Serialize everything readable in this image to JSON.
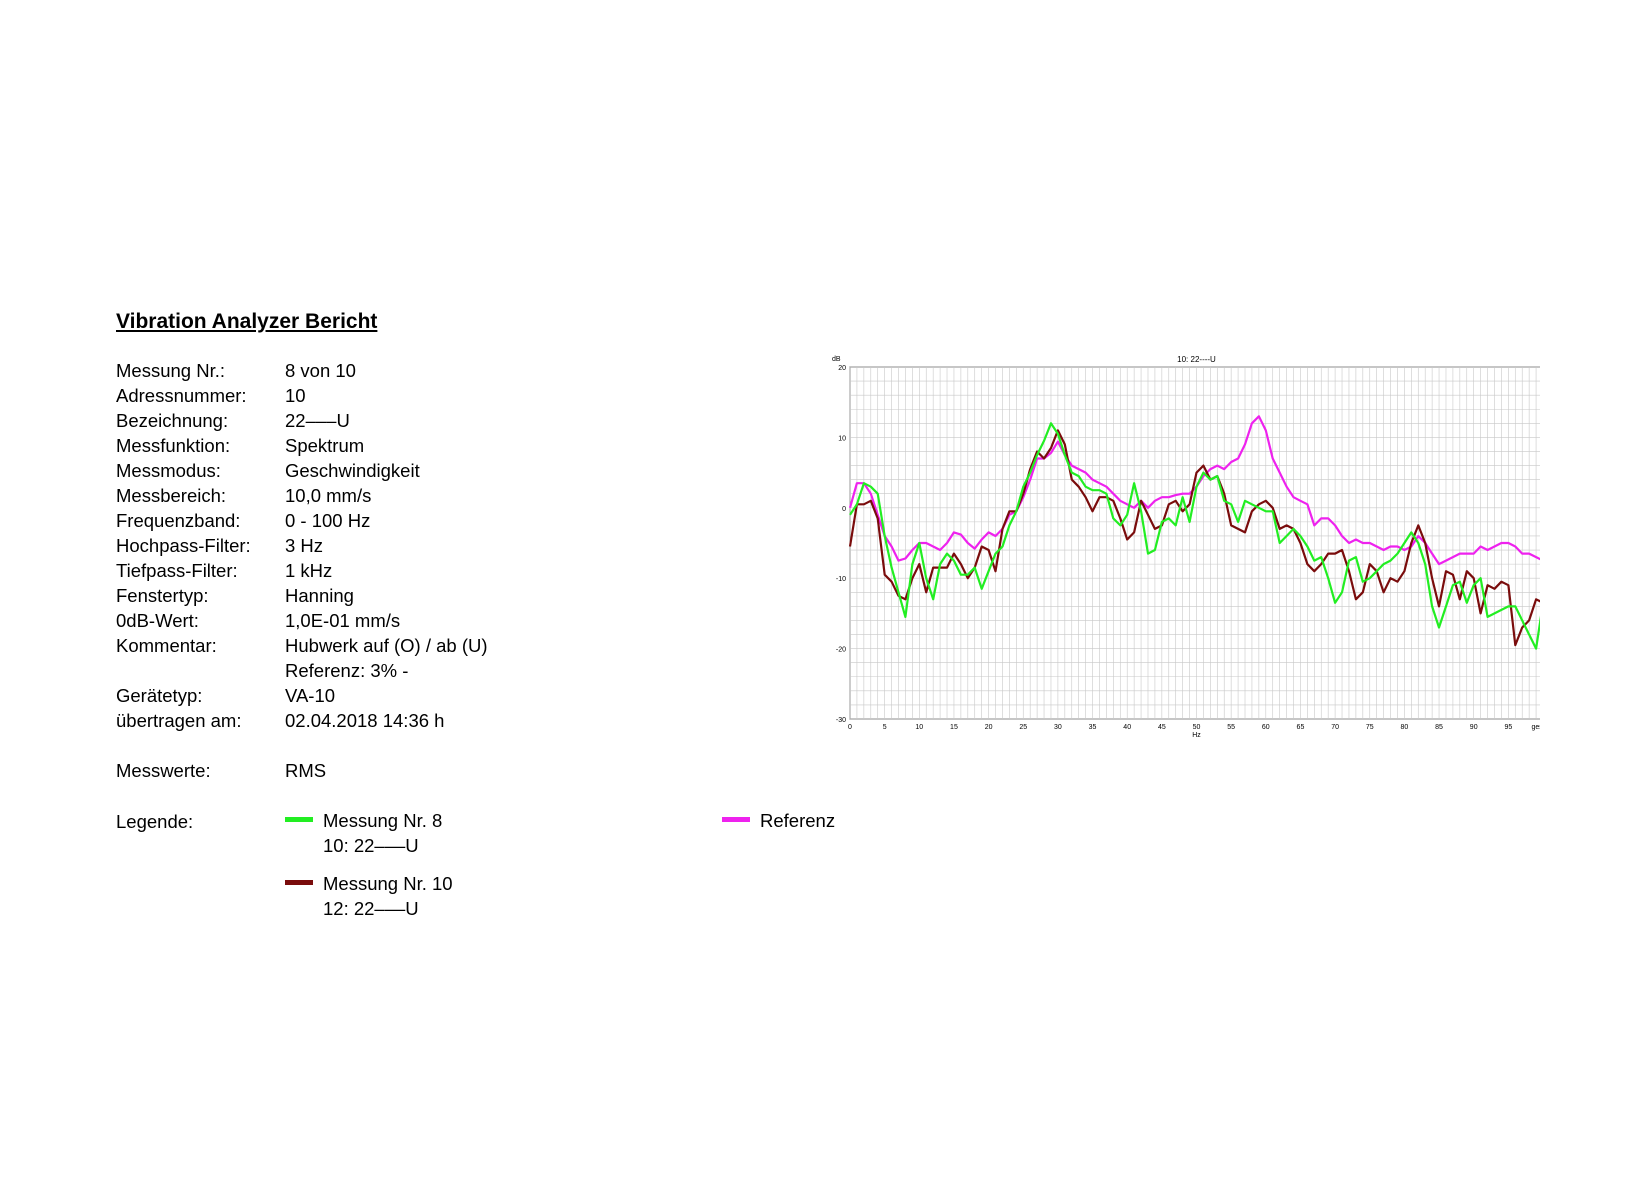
{
  "report": {
    "title": "Vibration Analyzer Bericht",
    "fields": [
      {
        "label": "Messung Nr.:",
        "value": "8 von 10"
      },
      {
        "label": "Adressnummer:",
        "value": "10"
      },
      {
        "label": "Bezeichnung:",
        "value": "22–––U"
      },
      {
        "label": "Messfunktion:",
        "value": "Spektrum"
      },
      {
        "label": "Messmodus:",
        "value": "Geschwindigkeit"
      },
      {
        "label": "Messbereich:",
        "value": "10,0 mm/s"
      },
      {
        "label": "Frequenzband:",
        "value": "0 - 100 Hz"
      },
      {
        "label": "Hochpass-Filter:",
        "value": "3 Hz"
      },
      {
        "label": "Tiefpass-Filter:",
        "value": "1 kHz"
      },
      {
        "label": "Fenstertyp:",
        "value": "Hanning"
      },
      {
        "label": "0dB-Wert:",
        "value": "1,0E-01 mm/s"
      },
      {
        "label": "Kommentar:",
        "value": "Hubwerk auf (O) / ab (U)"
      },
      {
        "label": "",
        "value": "Referenz: 3% -"
      },
      {
        "label": "Gerätetyp:",
        "value": "VA-10"
      },
      {
        "label": "übertragen am:",
        "value": "02.04.2018  14:36 h"
      }
    ],
    "messwerte_label": "Messwerte:",
    "messwerte_value": "RMS",
    "legende_label": "Legende:",
    "legend": [
      {
        "line1": "Messung Nr. 8",
        "line2": "10: 22–––U",
        "color": "#22ee22"
      },
      {
        "line1": "Messung Nr. 10",
        "line2": "12: 22–––U",
        "color": "#7a0c0c"
      },
      {
        "line1": "Referenz",
        "line2": "",
        "color": "#ee22ee"
      }
    ]
  },
  "chart_data": {
    "type": "line",
    "title": "10: 22----U",
    "ylabel": "dB",
    "xlabel": "Hz",
    "ylim": [
      -30,
      20
    ],
    "xlim": [
      0,
      100
    ],
    "yticks": [
      20,
      10,
      0,
      -10,
      -20,
      -30
    ],
    "xticks": [
      0,
      5,
      10,
      15,
      20,
      25,
      30,
      35,
      40,
      45,
      50,
      55,
      60,
      65,
      70,
      75,
      80,
      85,
      90,
      95
    ],
    "x_end_label": "gesamt",
    "grid": true,
    "series": [
      {
        "color": "#ee22ee",
        "x": [
          0,
          1,
          2,
          3,
          4,
          5,
          6,
          7,
          8,
          9,
          10,
          11,
          12,
          13,
          14,
          15,
          16,
          17,
          18,
          19,
          20,
          21,
          22,
          23,
          24,
          25,
          26,
          27,
          28,
          29,
          30,
          31,
          32,
          33,
          34,
          35,
          36,
          37,
          38,
          39,
          40,
          41,
          42,
          43,
          44,
          45,
          46,
          47,
          48,
          49,
          50,
          51,
          52,
          53,
          54,
          55,
          56,
          57,
          58,
          59,
          60,
          61,
          62,
          63,
          64,
          65,
          66,
          67,
          68,
          69,
          70,
          71,
          72,
          73,
          74,
          75,
          76,
          77,
          78,
          79,
          80,
          81,
          82,
          83,
          84,
          85,
          86,
          87,
          88,
          89,
          90,
          91,
          92,
          93,
          94,
          95,
          96,
          97,
          98,
          99,
          100
        ],
        "y": [
          0,
          3.5,
          3.5,
          2,
          -1,
          -4,
          -5.5,
          -7.5,
          -7.2,
          -6,
          -5,
          -5,
          -5.5,
          -6,
          -5,
          -3.5,
          -3.8,
          -5,
          -5.8,
          -4.5,
          -3.5,
          -4,
          -3,
          -1,
          -0.5,
          1.5,
          4,
          7,
          7,
          7.8,
          9.4,
          7.5,
          6,
          5.5,
          5,
          4,
          3.5,
          3,
          2,
          1,
          0.5,
          0,
          1,
          0,
          1,
          1.5,
          1.5,
          1.8,
          2,
          2,
          3,
          4.5,
          5.5,
          6,
          5.5,
          6.5,
          7,
          9,
          12,
          13,
          11,
          7,
          5,
          3,
          1.5,
          1,
          0.5,
          -2.5,
          -1.5,
          -1.5,
          -2.5,
          -4,
          -5,
          -4.5,
          -5,
          -5,
          -5.5,
          -6,
          -5.5,
          -5.5,
          -6,
          -5.5,
          -4,
          -5,
          -6.5,
          -8,
          -7.5,
          -7,
          -6.5,
          -6.5,
          -6.5,
          -5.5,
          -6,
          -5.5,
          -5,
          -5,
          -5.5,
          -6.5,
          -6.5,
          -7,
          -7.5
        ]
      },
      {
        "color": "#7a0c0c",
        "x": [
          0,
          1,
          2,
          3,
          4,
          5,
          6,
          7,
          8,
          9,
          10,
          11,
          12,
          13,
          14,
          15,
          16,
          17,
          18,
          19,
          20,
          21,
          22,
          23,
          24,
          25,
          26,
          27,
          28,
          29,
          30,
          31,
          32,
          33,
          34,
          35,
          36,
          37,
          38,
          39,
          40,
          41,
          42,
          43,
          44,
          45,
          46,
          47,
          48,
          49,
          50,
          51,
          52,
          53,
          54,
          55,
          56,
          57,
          58,
          59,
          60,
          61,
          62,
          63,
          64,
          65,
          66,
          67,
          68,
          69,
          70,
          71,
          72,
          73,
          74,
          75,
          76,
          77,
          78,
          79,
          80,
          81,
          82,
          83,
          84,
          85,
          86,
          87,
          88,
          89,
          90,
          91,
          92,
          93,
          94,
          95,
          96,
          97,
          98,
          99,
          100
        ],
        "y": [
          -5.5,
          0.5,
          0.5,
          1,
          -1.5,
          -9.5,
          -10.5,
          -12.5,
          -13,
          -10,
          -8,
          -12,
          -8.5,
          -8.5,
          -8.5,
          -6.5,
          -8,
          -10,
          -8.5,
          -5.5,
          -6,
          -9,
          -3,
          -0.5,
          -0.5,
          2,
          5.5,
          8,
          7,
          8.5,
          11,
          9,
          4,
          3,
          1.5,
          -0.5,
          1.5,
          1.5,
          1,
          -1.5,
          -4.5,
          -3.5,
          1,
          -1,
          -3,
          -2.5,
          0.5,
          1,
          -0.5,
          0.5,
          5,
          6,
          4,
          4.5,
          2,
          -2.5,
          -3,
          -3.5,
          -0.5,
          0.5,
          1,
          0,
          -3,
          -2.5,
          -3,
          -5,
          -8,
          -9,
          -8,
          -6.5,
          -6.5,
          -6,
          -9,
          -13,
          -12,
          -8,
          -9,
          -12,
          -10,
          -10.5,
          -9,
          -5,
          -2.5,
          -5,
          -10,
          -14,
          -9,
          -9.5,
          -13,
          -9,
          -10,
          -15,
          -11,
          -11.5,
          -10.5,
          -11,
          -19.5,
          -17,
          -16,
          -13,
          -13.5
        ]
      },
      {
        "color": "#22ee22",
        "x": [
          0,
          1,
          2,
          3,
          4,
          5,
          6,
          7,
          8,
          9,
          10,
          11,
          12,
          13,
          14,
          15,
          16,
          17,
          18,
          19,
          20,
          21,
          22,
          23,
          24,
          25,
          26,
          27,
          28,
          29,
          30,
          31,
          32,
          33,
          34,
          35,
          36,
          37,
          38,
          39,
          40,
          41,
          42,
          43,
          44,
          45,
          46,
          47,
          48,
          49,
          50,
          51,
          52,
          53,
          54,
          55,
          56,
          57,
          58,
          59,
          60,
          61,
          62,
          63,
          64,
          65,
          66,
          67,
          68,
          69,
          70,
          71,
          72,
          73,
          74,
          75,
          76,
          77,
          78,
          79,
          80,
          81,
          82,
          83,
          84,
          85,
          86,
          87,
          88,
          89,
          90,
          91,
          92,
          93,
          94,
          95,
          96,
          97,
          98,
          99,
          100
        ],
        "y": [
          -1,
          0.5,
          3.5,
          3,
          2,
          -4,
          -8.5,
          -12,
          -15.5,
          -8,
          -5,
          -10,
          -13,
          -8,
          -6.5,
          -7.5,
          -9.5,
          -9.5,
          -8.5,
          -11.5,
          -9,
          -6.5,
          -5.5,
          -2.5,
          -0.5,
          3,
          5,
          7.5,
          9.5,
          12,
          10.5,
          7.5,
          5,
          4.5,
          3,
          2.5,
          2.5,
          2,
          -1.5,
          -2.5,
          -1,
          3.5,
          -0.5,
          -6.5,
          -6,
          -2,
          -1.5,
          -2.5,
          1.5,
          -2,
          3,
          5,
          4,
          4.5,
          1,
          0.5,
          -2,
          1,
          0.5,
          0,
          -0.5,
          -0.5,
          -5,
          -4,
          -3,
          -4,
          -5.5,
          -7.5,
          -7,
          -10,
          -13.5,
          -12,
          -7.5,
          -7,
          -10.5,
          -10,
          -9,
          -8,
          -7.5,
          -6.5,
          -5,
          -3.5,
          -5,
          -8,
          -14,
          -17,
          -14,
          -11,
          -10.5,
          -13.5,
          -11,
          -10,
          -15.5,
          -15,
          -14.5,
          -14,
          -14,
          -16,
          -18,
          -20,
          -13.5
        ]
      }
    ]
  }
}
